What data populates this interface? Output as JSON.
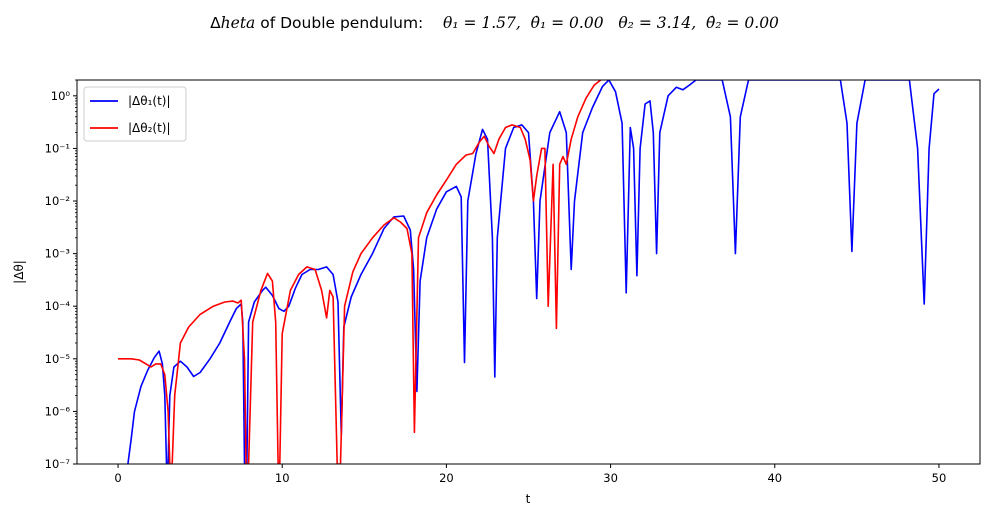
{
  "chart_data": {
    "type": "line",
    "title_prefix": "Δ",
    "title_italic": "heta",
    "title_rest": " of Double pendulum:    ",
    "title_formula": "θ₁ = 1.57,  θ̇₁ = 0.00   θ₂ = 3.14,  θ̇₂ = 0.00",
    "xlabel": "t",
    "ylabel": "|Δθ|",
    "xlim": [
      -2.5,
      52.5
    ],
    "ylim": [
      1e-07,
      2.0
    ],
    "yscale": "log",
    "x_ticks": [
      0,
      10,
      20,
      30,
      40,
      50
    ],
    "x_tick_labels": [
      "0",
      "10",
      "20",
      "30",
      "40",
      "50"
    ],
    "y_ticks": [
      -7,
      -6,
      -5,
      -4,
      -3,
      -2,
      -1,
      0
    ],
    "y_tick_labels": [
      "10⁻⁷",
      "10⁻⁶",
      "10⁻⁵",
      "10⁻⁴",
      "10⁻³",
      "10⁻²",
      "10⁻¹",
      "10⁰"
    ],
    "legend_position": "upper-left",
    "grid": false,
    "series": [
      {
        "name": "|Δθ₁(t)|",
        "color": "#0000ff",
        "points": [
          [
            0.6,
            1e-07
          ],
          [
            0.8,
            3e-07
          ],
          [
            1.0,
            1e-06
          ],
          [
            1.4,
            3e-06
          ],
          [
            1.8,
            6e-06
          ],
          [
            2.2,
            1.05e-05
          ],
          [
            2.5,
            1.4e-05
          ],
          [
            2.7,
            8e-06
          ],
          [
            2.85,
            2e-06
          ],
          [
            2.95,
            1e-07
          ],
          [
            3.05,
            1e-07
          ],
          [
            3.15,
            2e-06
          ],
          [
            3.4,
            7e-06
          ],
          [
            3.8,
            9e-06
          ],
          [
            4.2,
            7e-06
          ],
          [
            4.6,
            4.6e-06
          ],
          [
            5.0,
            5.5e-06
          ],
          [
            5.6,
            1e-05
          ],
          [
            6.2,
            2e-05
          ],
          [
            6.8,
            5e-05
          ],
          [
            7.2,
            9e-05
          ],
          [
            7.5,
            0.00011
          ],
          [
            7.6,
            5e-05
          ],
          [
            7.7,
            1e-07
          ],
          [
            7.85,
            1e-07
          ],
          [
            7.95,
            5e-05
          ],
          [
            8.3,
            0.00012
          ],
          [
            8.8,
            0.0002
          ],
          [
            9.0,
            0.00023
          ],
          [
            9.4,
            0.00016
          ],
          [
            9.8,
            9e-05
          ],
          [
            10.1,
            8e-05
          ],
          [
            10.4,
            0.0001
          ],
          [
            10.8,
            0.00022
          ],
          [
            11.2,
            0.0004
          ],
          [
            11.7,
            0.0005
          ],
          [
            12.2,
            0.0005
          ],
          [
            12.7,
            0.00056
          ],
          [
            13.1,
            0.0004
          ],
          [
            13.4,
            0.00012
          ],
          [
            13.6,
            3.5e-07
          ],
          [
            13.75,
            4e-05
          ],
          [
            14.2,
            0.00015
          ],
          [
            14.8,
            0.0004
          ],
          [
            15.5,
            0.001
          ],
          [
            16.2,
            0.003
          ],
          [
            16.8,
            0.005
          ],
          [
            17.4,
            0.0052
          ],
          [
            17.8,
            0.0028
          ],
          [
            18.0,
            0.0005
          ],
          [
            18.2,
            2.4e-06
          ],
          [
            18.4,
            0.0003
          ],
          [
            18.8,
            0.002
          ],
          [
            19.4,
            0.007
          ],
          [
            20.0,
            0.015
          ],
          [
            20.6,
            0.019
          ],
          [
            20.9,
            0.012
          ],
          [
            21.1,
            8.5e-06
          ],
          [
            21.3,
            0.01
          ],
          [
            21.8,
            0.08
          ],
          [
            22.2,
            0.23
          ],
          [
            22.5,
            0.15
          ],
          [
            22.8,
            0.002
          ],
          [
            22.95,
            4.5e-06
          ],
          [
            23.1,
            0.002
          ],
          [
            23.6,
            0.1
          ],
          [
            24.1,
            0.25
          ],
          [
            24.6,
            0.28
          ],
          [
            25.0,
            0.2
          ],
          [
            25.3,
            0.01
          ],
          [
            25.5,
            0.00014
          ],
          [
            25.7,
            0.01
          ],
          [
            26.3,
            0.2
          ],
          [
            26.9,
            0.5
          ],
          [
            27.3,
            0.2
          ],
          [
            27.6,
            0.0005
          ],
          [
            27.8,
            0.01
          ],
          [
            28.3,
            0.2
          ],
          [
            28.9,
            0.6
          ],
          [
            29.5,
            1.5
          ],
          [
            29.9,
            2.0
          ],
          [
            30.3,
            1.2
          ],
          [
            30.7,
            0.3
          ],
          [
            30.95,
            0.00018
          ],
          [
            31.2,
            0.25
          ],
          [
            31.4,
            0.1
          ],
          [
            31.6,
            0.00038
          ],
          [
            31.8,
            0.1
          ],
          [
            32.1,
            0.7
          ],
          [
            32.4,
            0.8
          ],
          [
            32.6,
            0.2
          ],
          [
            32.8,
            0.001
          ],
          [
            33.0,
            0.2
          ],
          [
            33.5,
            1.0
          ],
          [
            34.0,
            1.45
          ],
          [
            34.4,
            1.3
          ],
          [
            34.8,
            1.6
          ],
          [
            35.2,
            2.0
          ],
          [
            36.8,
            2.0
          ],
          [
            37.3,
            0.4
          ],
          [
            37.6,
            0.001
          ],
          [
            37.9,
            0.4
          ],
          [
            38.4,
            2.0
          ],
          [
            44.0,
            2.0
          ],
          [
            44.4,
            0.3
          ],
          [
            44.7,
            0.0011
          ],
          [
            45.0,
            0.3
          ],
          [
            45.5,
            2.0
          ],
          [
            48.2,
            2.0
          ],
          [
            48.7,
            0.1
          ],
          [
            49.1,
            0.00011
          ],
          [
            49.4,
            0.1
          ],
          [
            49.7,
            1.1
          ],
          [
            50.0,
            1.35
          ]
        ]
      },
      {
        "name": "|Δθ₂(t)|",
        "color": "#ff0000",
        "points": [
          [
            0.0,
            1e-05
          ],
          [
            0.8,
            1e-05
          ],
          [
            1.3,
            9.5e-06
          ],
          [
            1.7,
            8e-06
          ],
          [
            2.0,
            7e-06
          ],
          [
            2.3,
            8e-06
          ],
          [
            2.6,
            8e-06
          ],
          [
            2.85,
            5e-06
          ],
          [
            3.05,
            1e-06
          ],
          [
            3.15,
            1e-07
          ],
          [
            3.3,
            1e-07
          ],
          [
            3.45,
            2e-06
          ],
          [
            3.8,
            2e-05
          ],
          [
            4.3,
            4e-05
          ],
          [
            5.0,
            7e-05
          ],
          [
            5.8,
            0.0001
          ],
          [
            6.5,
            0.00012
          ],
          [
            7.0,
            0.000125
          ],
          [
            7.3,
            0.000115
          ],
          [
            7.5,
            0.00013
          ],
          [
            7.7,
            1e-05
          ],
          [
            7.8,
            1e-07
          ],
          [
            7.95,
            1e-07
          ],
          [
            8.2,
            5e-05
          ],
          [
            8.7,
            0.0002
          ],
          [
            9.1,
            0.00042
          ],
          [
            9.4,
            0.0003
          ],
          [
            9.6,
            5e-05
          ],
          [
            9.75,
            1e-07
          ],
          [
            9.85,
            1e-07
          ],
          [
            10.0,
            3e-05
          ],
          [
            10.5,
            0.0002
          ],
          [
            11.0,
            0.0004
          ],
          [
            11.5,
            0.00056
          ],
          [
            12.0,
            0.0005
          ],
          [
            12.4,
            0.0002
          ],
          [
            12.7,
            6e-05
          ],
          [
            12.9,
            0.0002
          ],
          [
            13.1,
            0.00015
          ],
          [
            13.35,
            1e-07
          ],
          [
            13.55,
            1e-07
          ],
          [
            13.8,
            0.0001
          ],
          [
            14.3,
            0.00045
          ],
          [
            14.8,
            0.001
          ],
          [
            15.5,
            0.002
          ],
          [
            16.2,
            0.0035
          ],
          [
            16.8,
            0.0048
          ],
          [
            17.2,
            0.004
          ],
          [
            17.6,
            0.003
          ],
          [
            17.9,
            0.001
          ],
          [
            18.05,
            4e-07
          ],
          [
            18.3,
            0.002
          ],
          [
            18.8,
            0.006
          ],
          [
            19.4,
            0.013
          ],
          [
            20.0,
            0.025
          ],
          [
            20.6,
            0.05
          ],
          [
            21.2,
            0.075
          ],
          [
            21.6,
            0.08
          ],
          [
            22.0,
            0.13
          ],
          [
            22.3,
            0.17
          ],
          [
            22.6,
            0.11
          ],
          [
            22.9,
            0.08
          ],
          [
            23.2,
            0.15
          ],
          [
            23.6,
            0.25
          ],
          [
            24.0,
            0.28
          ],
          [
            24.5,
            0.25
          ],
          [
            24.8,
            0.15
          ],
          [
            25.1,
            0.06
          ],
          [
            25.3,
            0.01
          ],
          [
            25.5,
            0.03
          ],
          [
            25.8,
            0.1
          ],
          [
            26.0,
            0.1
          ],
          [
            26.2,
            0.0001
          ],
          [
            26.5,
            0.05
          ],
          [
            26.7,
            3.8e-05
          ],
          [
            26.9,
            0.05
          ],
          [
            27.1,
            0.07
          ],
          [
            27.3,
            0.05
          ],
          [
            27.6,
            0.15
          ],
          [
            28.0,
            0.4
          ],
          [
            28.5,
            0.9
          ],
          [
            29.0,
            1.6
          ],
          [
            29.4,
            2.0
          ]
        ]
      }
    ]
  }
}
